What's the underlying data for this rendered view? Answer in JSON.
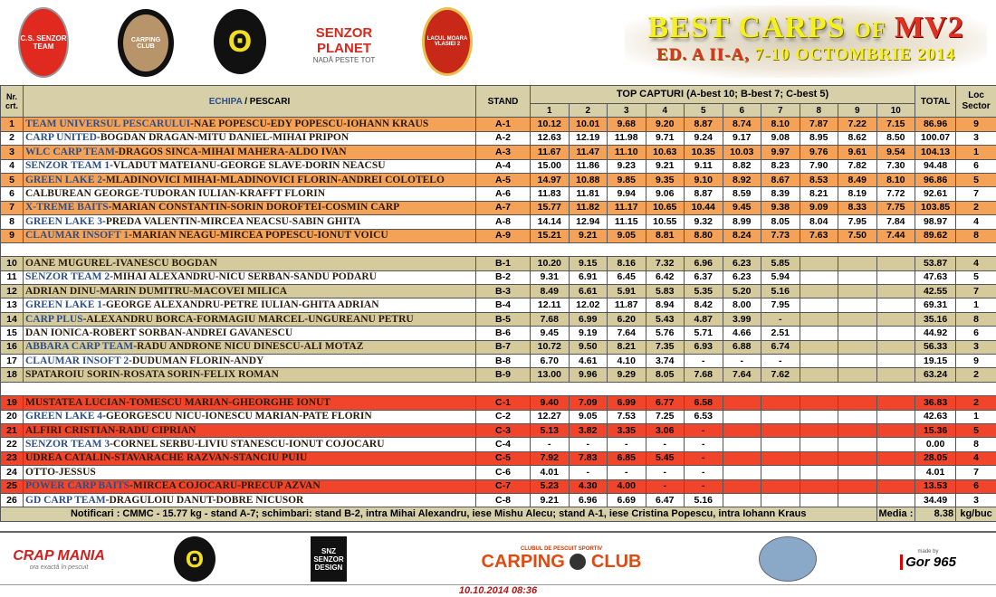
{
  "header": {
    "logos": [
      "C.S. SENZOR TEAM",
      "CARPING CLUB",
      "SENZOR PLANET",
      "NADĂ PESTE TOT",
      "LACUL MOARA VLASIEI 2"
    ],
    "title_main": "BEST CARPS",
    "title_of": "OF",
    "title_event": "MV2",
    "subtitle_ed": "ED. A II-A,",
    "subtitle_date": "7-10 OCTOMBRIE 2014"
  },
  "table": {
    "col_nr": "Nr. crt.",
    "col_team": "ECHIPA",
    "col_sep": " / ",
    "col_anglers": "PESCARI",
    "col_stand": "STAND",
    "col_top": "TOP CAPTURI (A-best 10; B-best 7; C-best 5)",
    "col_nums": [
      "1",
      "2",
      "3",
      "4",
      "5",
      "6",
      "7",
      "8",
      "9",
      "10"
    ],
    "col_total": "TOTAL",
    "col_loc": "Loc Sector",
    "sectors": [
      {
        "sector": "A",
        "color": "#f5a259",
        "rows": [
          {
            "nr": "1",
            "team": "TEAM UNIVERSUL PESCARULUI",
            "anglers": "-NAE POPESCU-EDY POPESCU-IOHANN KRAUS",
            "stand": "A-1",
            "catches": [
              "10.12",
              "10.01",
              "9.68",
              "9.20",
              "8.87",
              "8.74",
              "8.10",
              "7.87",
              "7.22",
              "7.15"
            ],
            "total": "86.96",
            "loc": "9"
          },
          {
            "nr": "2",
            "team": "CARP UNITED",
            "anglers": "-BOGDAN DRAGAN-MITU DANIEL-MIHAI PRIPON",
            "stand": "A-2",
            "catches": [
              "12.63",
              "12.19",
              "11.98",
              "9.71",
              "9.24",
              "9.17",
              "9.08",
              "8.95",
              "8.62",
              "8.50"
            ],
            "total": "100.07",
            "loc": "3"
          },
          {
            "nr": "3",
            "team": "WLC CARP TEAM",
            "anglers": "-DRAGOS SINCA-MIHAI MAHERA-ALDO IVAN",
            "stand": "A-3",
            "catches": [
              "11.67",
              "11.47",
              "11.10",
              "10.63",
              "10.35",
              "10.03",
              "9.97",
              "9.76",
              "9.61",
              "9.54"
            ],
            "total": "104.13",
            "loc": "1"
          },
          {
            "nr": "4",
            "team": "SENZOR TEAM 1",
            "anglers": "-VLADUT MATEIANU-GEORGE SLAVE-DORIN NEACSU",
            "stand": "A-4",
            "catches": [
              "15.00",
              "11.86",
              "9.23",
              "9.21",
              "9.11",
              "8.82",
              "8.23",
              "7.90",
              "7.82",
              "7.30"
            ],
            "total": "94.48",
            "loc": "6"
          },
          {
            "nr": "5",
            "team": "GREEN LAKE 2",
            "anglers": "-MLADINOVICI MIHAI-MLADINOVICI FLORIN-ANDREI COLOTELO",
            "stand": "A-5",
            "catches": [
              "14.97",
              "10.88",
              "9.85",
              "9.35",
              "9.10",
              "8.92",
              "8.67",
              "8.53",
              "8.49",
              "8.10"
            ],
            "total": "96.86",
            "loc": "5"
          },
          {
            "nr": "6",
            "team": "",
            "anglers": "CALBUREAN GEORGE-TUDORAN IULIAN-KRAFFT FLORIN",
            "stand": "A-6",
            "catches": [
              "11.83",
              "11.81",
              "9.94",
              "9.06",
              "8.87",
              "8.59",
              "8.39",
              "8.21",
              "8.19",
              "7.72"
            ],
            "total": "92.61",
            "loc": "7"
          },
          {
            "nr": "7",
            "team": "X-TREME BAITS",
            "anglers": "-MARIAN CONSTANTIN-SORIN DOROFTEI-COSMIN CARP",
            "stand": "A-7",
            "catches": [
              "15.77",
              "11.82",
              "11.17",
              "10.65",
              "10.44",
              "9.45",
              "9.38",
              "9.09",
              "8.33",
              "7.75"
            ],
            "total": "103.85",
            "loc": "2"
          },
          {
            "nr": "8",
            "team": "GREEN LAKE 3",
            "anglers": "-PREDA VALENTIN-MIRCEA NEACSU-SABIN GHITA",
            "stand": "A-8",
            "catches": [
              "14.14",
              "12.94",
              "11.15",
              "10.55",
              "9.32",
              "8.99",
              "8.05",
              "8.04",
              "7.95",
              "7.84"
            ],
            "total": "98.97",
            "loc": "4"
          },
          {
            "nr": "9",
            "team": "CLAUMAR INSOFT 1",
            "anglers": "-MARIAN NEAGU-MIRCEA POPESCU-IONUT VOICU",
            "stand": "A-9",
            "catches": [
              "15.21",
              "9.21",
              "9.05",
              "8.81",
              "8.80",
              "8.24",
              "7.73",
              "7.63",
              "7.50",
              "7.44"
            ],
            "total": "89.62",
            "loc": "8"
          }
        ]
      },
      {
        "sector": "B",
        "color": "#d4ca9c",
        "rows": [
          {
            "nr": "10",
            "team": "",
            "anglers": "OANE MUGUREL-IVANESCU BOGDAN",
            "stand": "B-1",
            "catches": [
              "10.20",
              "9.15",
              "8.16",
              "7.32",
              "6.96",
              "6.23",
              "5.85"
            ],
            "total": "53.87",
            "loc": "4"
          },
          {
            "nr": "11",
            "team": "SENZOR TEAM 2",
            "anglers": "-MIHAI ALEXANDRU-NICU SERBAN-SANDU PODARU",
            "stand": "B-2",
            "catches": [
              "9.31",
              "6.91",
              "6.45",
              "6.42",
              "6.37",
              "6.23",
              "5.94"
            ],
            "total": "47.63",
            "loc": "5"
          },
          {
            "nr": "12",
            "team": "",
            "anglers": "ADRIAN DINU-MARIN DUMITRU-MACOVEI  MILICA",
            "stand": "B-3",
            "catches": [
              "8.49",
              "6.61",
              "5.91",
              "5.83",
              "5.35",
              "5.20",
              "5.16"
            ],
            "total": "42.55",
            "loc": "7"
          },
          {
            "nr": "13",
            "team": "GREEN LAKE 1",
            "anglers": "-GEORGE ALEXANDRU-PETRE IULIAN-GHITA ADRIAN",
            "stand": "B-4",
            "catches": [
              "12.11",
              "12.02",
              "11.87",
              "8.94",
              "8.42",
              "8.00",
              "7.95"
            ],
            "total": "69.31",
            "loc": "1"
          },
          {
            "nr": "14",
            "team": "CARP PLUS",
            "anglers": "-ALEXANDRU BORCA-FORMAGIU MARCEL-UNGUREANU PETRU",
            "stand": "B-5",
            "catches": [
              "7.68",
              "6.99",
              "6.20",
              "5.43",
              "4.87",
              "3.99",
              "-"
            ],
            "total": "35.16",
            "loc": "8"
          },
          {
            "nr": "15",
            "team": "",
            "anglers": "DAN IONICA-ROBERT SORBAN-ANDREI GAVANESCU",
            "stand": "B-6",
            "catches": [
              "9.45",
              "9.19",
              "7.64",
              "5.76",
              "5.71",
              "4.66",
              "2.51"
            ],
            "total": "44.92",
            "loc": "6"
          },
          {
            "nr": "16",
            "team": "ABBARA CARP TEAM",
            "anglers": "-RADU ANDRONE NICU DINESCU-ALI MOTAZ",
            "stand": "B-7",
            "catches": [
              "10.72",
              "9.50",
              "8.21",
              "7.35",
              "6.93",
              "6.88",
              "6.74"
            ],
            "total": "56.33",
            "loc": "3"
          },
          {
            "nr": "17",
            "team": "CLAUMAR INSOFT 2",
            "anglers": "-DUDUMAN FLORIN-ANDY",
            "stand": "B-8",
            "catches": [
              "6.70",
              "4.61",
              "4.10",
              "3.74",
              "-",
              "-",
              "-"
            ],
            "total": "19.15",
            "loc": "9"
          },
          {
            "nr": "18",
            "team": "",
            "anglers": "SPATAROIU SORIN-ROSATA SORIN-FELIX ROMAN",
            "stand": "B-9",
            "catches": [
              "13.00",
              "9.96",
              "9.29",
              "8.05",
              "7.68",
              "7.64",
              "7.62"
            ],
            "total": "63.24",
            "loc": "2"
          }
        ]
      },
      {
        "sector": "C",
        "color": "#f0452a",
        "rows": [
          {
            "nr": "19",
            "team": "",
            "anglers": "MUSTATEA LUCIAN-TOMESCU MARIAN-GHEORGHE IONUT",
            "stand": "C-1",
            "catches": [
              "9.40",
              "7.09",
              "6.99",
              "6.77",
              "6.58"
            ],
            "total": "36.83",
            "loc": "2"
          },
          {
            "nr": "20",
            "team": "GREEN LAKE 4",
            "anglers": "-GEORGESCU NICU-IONESCU MARIAN-PATE FLORIN",
            "stand": "C-2",
            "catches": [
              "12.27",
              "9.05",
              "7.53",
              "7.25",
              "6.53"
            ],
            "total": "42.63",
            "loc": "1"
          },
          {
            "nr": "21",
            "team": "",
            "anglers": "ALFIRI CRISTIAN-RADU CIPRIAN",
            "stand": "C-3",
            "catches": [
              "5.13",
              "3.82",
              "3.35",
              "3.06",
              "-"
            ],
            "total": "15.36",
            "loc": "5"
          },
          {
            "nr": "22",
            "team": "SENZOR TEAM 3",
            "anglers": "-CORNEL SERBU-LIVIU STANESCU-IONUT COJOCARU",
            "stand": "C-4",
            "catches": [
              "-",
              "-",
              "-",
              "-",
              "-"
            ],
            "total": "0.00",
            "loc": "8"
          },
          {
            "nr": "23",
            "team": "",
            "anglers": "UDREA CATALIN-STAVARACHE RAZVAN-STANCIU PUIU",
            "stand": "C-5",
            "catches": [
              "7.92",
              "7.83",
              "6.85",
              "5.45",
              "-"
            ],
            "total": "28.05",
            "loc": "4"
          },
          {
            "nr": "24",
            "team": "",
            "anglers": "OTTO-JESSUS",
            "stand": "C-6",
            "catches": [
              "4.01",
              "-",
              "-",
              "-",
              "-"
            ],
            "total": "4.01",
            "loc": "7"
          },
          {
            "nr": "25",
            "team": "POWER CARP BAITS",
            "anglers": "-MIRCEA COJOCARU-PRECUP AZVAN",
            "stand": "C-7",
            "catches": [
              "5.23",
              "4.30",
              "4.00",
              "-",
              "-"
            ],
            "total": "13.53",
            "loc": "6"
          },
          {
            "nr": "26",
            "team": "GD CARP TEAM",
            "anglers": "-DRAGULOIU DANUT-DOBRE NICUSOR",
            "stand": "C-8",
            "catches": [
              "9.21",
              "6.96",
              "6.69",
              "6.47",
              "5.16"
            ],
            "total": "34.49",
            "loc": "3"
          }
        ]
      }
    ],
    "notes": "Notificari : CMMC -  15.77 kg - stand A-7;    schimbari: stand B-2, intra Mihai Alexandru, iese Mishu Alecu; stand A-1, iese Cristina Popescu, intra Iohann Kraus",
    "media_label": "Media :",
    "media_value": "8.38",
    "media_unit": "kg/buc"
  },
  "footer": {
    "logos": [
      "CRAP MANIA",
      "ora exactă în pescuit",
      "SNZ SENZOR DESIGN",
      "CLUBUL DE PESCUIT SPORTIV",
      "CARPING",
      "CLUB",
      "made by",
      "Gor 965"
    ],
    "timestamp": "10.10.2014 08:36"
  }
}
